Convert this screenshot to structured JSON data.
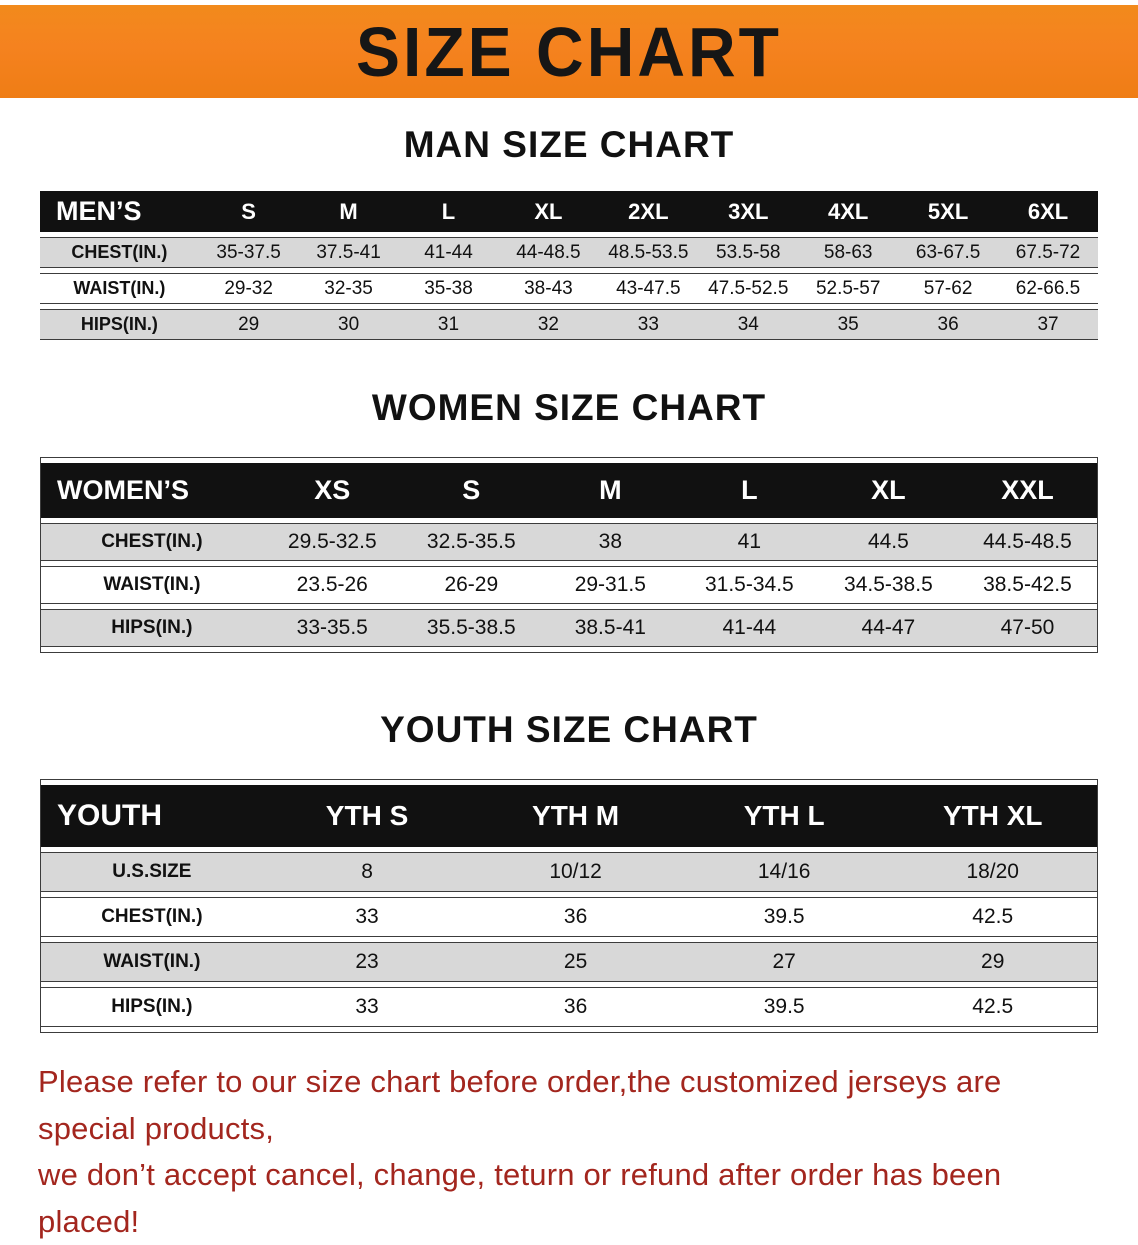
{
  "banner": {
    "title": "SIZE CHART"
  },
  "men": {
    "heading": "MAN SIZE CHART",
    "header": [
      "MEN’S",
      "S",
      "M",
      "L",
      "XL",
      "2XL",
      "3XL",
      "4XL",
      "5XL",
      "6XL"
    ],
    "rows": [
      [
        "CHEST(IN.)",
        "35-37.5",
        "37.5-41",
        "41-44",
        "44-48.5",
        "48.5-53.5",
        "53.5-58",
        "58-63",
        "63-67.5",
        "67.5-72"
      ],
      [
        "WAIST(IN.)",
        "29-32",
        "32-35",
        "35-38",
        "38-43",
        "43-47.5",
        "47.5-52.5",
        "52.5-57",
        "57-62",
        "62-66.5"
      ],
      [
        "HIPS(IN.)",
        "29",
        "30",
        "31",
        "32",
        "33",
        "34",
        "35",
        "36",
        "37"
      ]
    ]
  },
  "women": {
    "heading": "WOMEN SIZE CHART",
    "header": [
      "WOMEN’S",
      "XS",
      "S",
      "M",
      "L",
      "XL",
      "XXL"
    ],
    "rows": [
      [
        "CHEST(IN.)",
        "29.5-32.5",
        "32.5-35.5",
        "38",
        "41",
        "44.5",
        "44.5-48.5"
      ],
      [
        "WAIST(IN.)",
        "23.5-26",
        "26-29",
        "29-31.5",
        "31.5-34.5",
        "34.5-38.5",
        "38.5-42.5"
      ],
      [
        "HIPS(IN.)",
        "33-35.5",
        "35.5-38.5",
        "38.5-41",
        "41-44",
        "44-47",
        "47-50"
      ]
    ]
  },
  "youth": {
    "heading": "YOUTH SIZE CHART",
    "header": [
      "YOUTH",
      "YTH S",
      "YTH M",
      "YTH L",
      "YTH XL"
    ],
    "rows": [
      [
        "U.S.SIZE",
        "8",
        "10/12",
        "14/16",
        "18/20"
      ],
      [
        "CHEST(IN.)",
        "33",
        "36",
        "39.5",
        "42.5"
      ],
      [
        "WAIST(IN.)",
        "23",
        "25",
        "27",
        "29"
      ],
      [
        "HIPS(IN.)",
        "33",
        "36",
        "39.5",
        "42.5"
      ]
    ]
  },
  "footer": {
    "line1": "Please refer to our size chart before order,the customized jerseys are special products,",
    "line2": "we don’t accept cancel, change, teturn or refund after order has been placed!"
  },
  "colors": {
    "banner_bg": "#F5821F",
    "header_bg": "#111111",
    "row_gray": "#d8d8d8",
    "footer_text": "#A3261E"
  }
}
